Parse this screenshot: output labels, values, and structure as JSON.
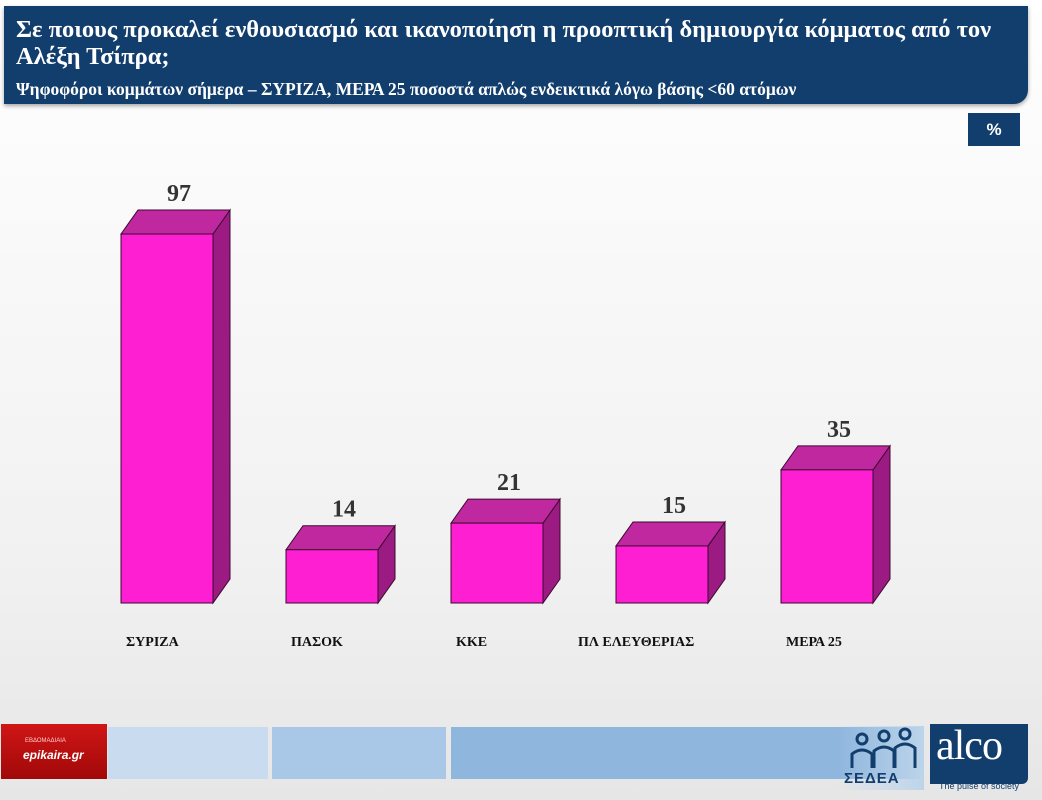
{
  "header": {
    "title": "Σε ποιους προκαλεί ενθουσιασμό και ικανοποίηση η προοπτική δημιουργία κόμματος από τον Αλέξη Τσίπρα;",
    "subtitle": "Ψηφοφόροι κομμάτων σήμερα – ΣΥΡΙΖΑ, ΜΕΡΑ 25 ποσοστά απλώς ενδεικτικά λόγω βάσης <60 ατόμων"
  },
  "unit_badge": "%",
  "chart_data": {
    "type": "bar",
    "title": "Σε ποιους προκαλεί ενθουσιασμό και ικανοποίηση η προοπτική δημιουργία κόμματος από τον Αλέξη Τσίπρα;",
    "categories": [
      "ΣΥΡΙΖΑ",
      "ΠΑΣΟΚ",
      "ΚΚΕ",
      "ΠΛ ΕΛΕΥΘΕΡΙΑΣ",
      "ΜΕΡΑ 25"
    ],
    "values": [
      97,
      14,
      21,
      15,
      35
    ],
    "unit": "%",
    "xlabel": "",
    "ylabel": "",
    "ylim": [
      0,
      100
    ],
    "grid": false,
    "legend": "none",
    "colors": {
      "front": "#ff1fd2",
      "top": "#c0289f",
      "side": "#9b1b82",
      "edge": "#3a0a30"
    }
  },
  "footer": {
    "source_logo": "epikaira.gr",
    "source_logo_small": "ΕΒΔΟΜΑΔΙΑΙΑ",
    "partner_logo": "ΣΕΔΕΑ",
    "brand_logo": "alco",
    "brand_tagline": "The pulse of society",
    "strip_colors": [
      "#c9dcef",
      "#a9c7e6",
      "#8fb6dd"
    ]
  }
}
